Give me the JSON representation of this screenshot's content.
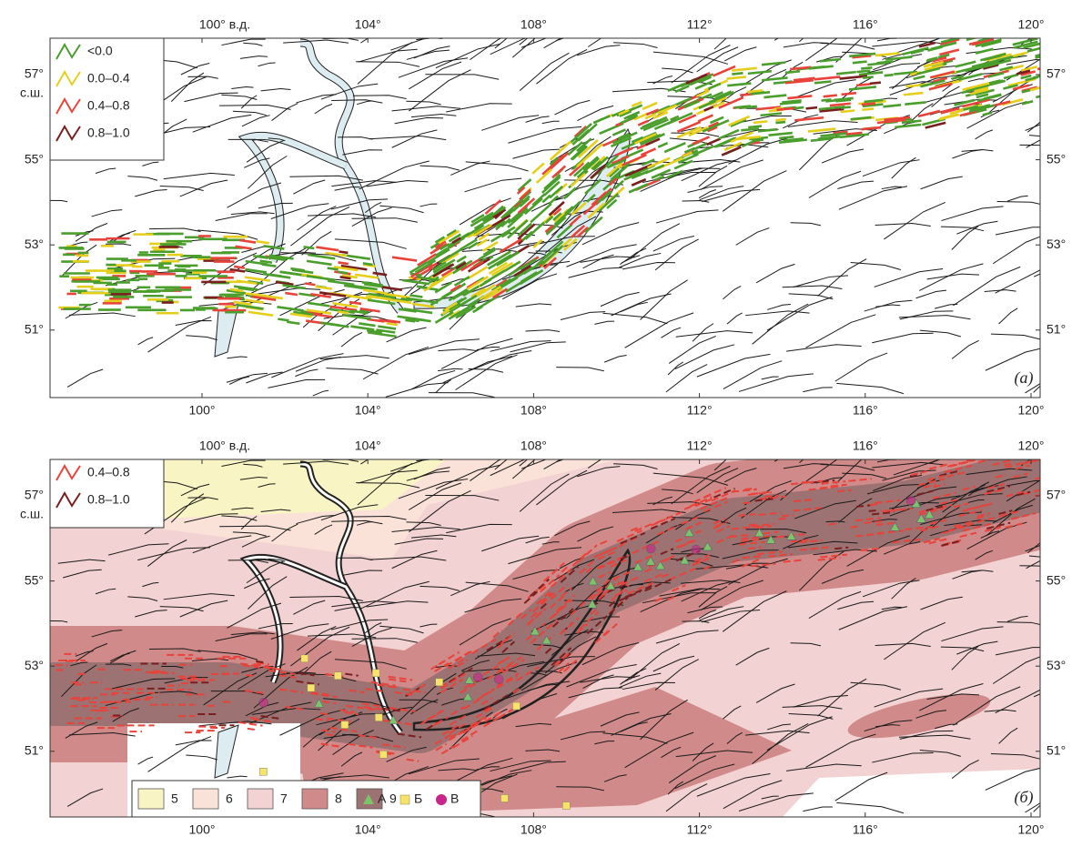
{
  "panels": [
    {
      "top_axis": [
        "100° в.д.",
        "104°",
        "108°",
        "112°",
        "116°",
        "120°"
      ],
      "bottom_axis": [
        "100°",
        "104°",
        "108°",
        "112°",
        "116°",
        "120°"
      ],
      "left_axis": [
        "57°",
        "55°",
        "53°",
        "51°"
      ],
      "left_axis_unit": "с.ш.",
      "right_axis": [
        "57°",
        "55°",
        "53°",
        "51°"
      ],
      "legend": [
        {
          "label": "<0.0",
          "color": "#4a9e2c"
        },
        {
          "label": "0.0–0.4",
          "color": "#e6cf1c"
        },
        {
          "label": "0.4–0.8",
          "color": "#e8433a"
        },
        {
          "label": "0.8–1.0",
          "color": "#7a1f1f"
        }
      ],
      "panel_label": "(а)"
    },
    {
      "top_axis": [
        "100° в.д.",
        "104°",
        "108°",
        "112°",
        "116°",
        "120°"
      ],
      "bottom_axis": [
        "100°",
        "104°",
        "108°",
        "112°",
        "116°",
        "120°"
      ],
      "left_axis": [
        "57°",
        "55°",
        "53°",
        "51°"
      ],
      "left_axis_unit": "с.ш.",
      "right_axis": [
        "57°",
        "55°",
        "53°",
        "51°"
      ],
      "legend": [
        {
          "label": "0.4–0.8",
          "color": "#e8433a"
        },
        {
          "label": "0.8–1.0",
          "color": "#7a1f1f"
        }
      ],
      "zones": [
        {
          "label": "5",
          "color": "#f9f4c4"
        },
        {
          "label": "6",
          "color": "#fbe2d8"
        },
        {
          "label": "7",
          "color": "#f2d2d2"
        },
        {
          "label": "8",
          "color": "#d18a8a"
        },
        {
          "label": "9",
          "color": "#9c7272"
        }
      ],
      "symbols": [
        {
          "label": "А",
          "shape": "triangle",
          "color": "#7cc46a"
        },
        {
          "label": "Б",
          "shape": "square",
          "color": "#f7e36a"
        },
        {
          "label": "В",
          "shape": "circle",
          "color": "#c9268c"
        }
      ],
      "panel_label": "(б)"
    }
  ]
}
